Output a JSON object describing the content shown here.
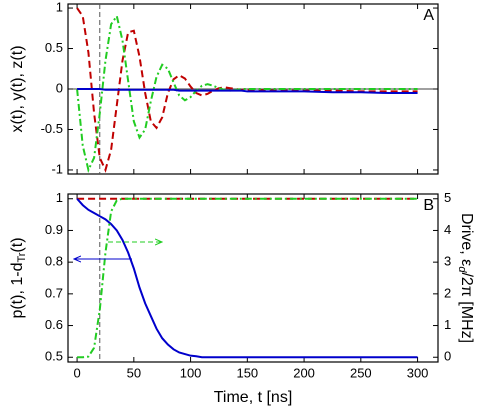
{
  "chart_data": [
    {
      "type": "line",
      "annotation": "A",
      "ylabel": "x(t), y(t), z(t)",
      "x": [
        0,
        5,
        10,
        15,
        20,
        25,
        30,
        35,
        40,
        45,
        50,
        55,
        60,
        65,
        70,
        75,
        80,
        85,
        90,
        95,
        100,
        105,
        110,
        115,
        120,
        125,
        130,
        135,
        140,
        145,
        150,
        175,
        200,
        225,
        250,
        275,
        300
      ],
      "xlim": [
        -8,
        318
      ],
      "xticks": [
        0,
        50,
        100,
        150,
        200,
        250,
        300
      ],
      "ylim": [
        -1.05,
        1.05
      ],
      "yticks": [
        -1,
        -0.5,
        0,
        0.5,
        1
      ],
      "vlines": [
        20
      ],
      "grid": false,
      "series": [
        {
          "color": "#c00000",
          "style": "dashed",
          "values": [
            1,
            0.9,
            0.45,
            -0.3,
            -0.85,
            -1,
            -0.75,
            -0.2,
            0.35,
            0.7,
            0.72,
            0.4,
            -0.05,
            -0.4,
            -0.48,
            -0.35,
            -0.05,
            0.12,
            0.17,
            0.13,
            0.03,
            -0.05,
            -0.08,
            -0.06,
            -0.02,
            0.01,
            0.02,
            0.01,
            0,
            -0.01,
            -0.01,
            -0.02,
            -0.02,
            -0.02,
            -0.03,
            -0.03,
            -0.03
          ]
        },
        {
          "color": "#22cc22",
          "style": "dashdot",
          "values": [
            0,
            -0.7,
            -1,
            -0.85,
            -0.3,
            0.35,
            0.8,
            0.9,
            0.6,
            0.1,
            -0.4,
            -0.6,
            -0.5,
            -0.15,
            0.15,
            0.3,
            0.25,
            0.08,
            -0.08,
            -0.14,
            -0.1,
            -0.02,
            0.04,
            0.06,
            0.04,
            0.01,
            -0.01,
            -0.02,
            -0.01,
            0,
            0,
            0,
            0,
            0,
            0,
            0,
            0
          ]
        },
        {
          "color": "#0000cc",
          "style": "solid",
          "values": [
            0,
            0,
            0,
            0,
            0,
            -0.01,
            -0.01,
            -0.01,
            -0.01,
            -0.01,
            -0.01,
            -0.01,
            -0.01,
            -0.01,
            -0.01,
            -0.01,
            -0.01,
            -0.01,
            -0.02,
            -0.02,
            -0.02,
            -0.02,
            -0.02,
            -0.02,
            -0.02,
            -0.02,
            -0.02,
            -0.02,
            -0.02,
            -0.02,
            -0.03,
            -0.03,
            -0.03,
            -0.04,
            -0.04,
            -0.05,
            -0.05
          ]
        }
      ]
    },
    {
      "type": "line",
      "annotation": "B",
      "xlabel": "Time, t [ns]",
      "ylabel": "p(t), 1-d",
      "ylabel_sub": "Tr",
      "ylabel_end": "(t)",
      "y2label": "Drive, ε",
      "y2label_sub": "d",
      "y2label_end": "/2π [MHz]",
      "x": [
        0,
        5,
        10,
        15,
        20,
        25,
        30,
        35,
        40,
        45,
        50,
        55,
        60,
        65,
        70,
        75,
        80,
        85,
        90,
        95,
        100,
        105,
        110,
        115,
        120,
        125,
        130,
        135,
        140,
        145,
        150,
        175,
        200,
        225,
        250,
        275,
        300
      ],
      "xlim": [
        -8,
        318
      ],
      "xticks": [
        0,
        50,
        100,
        150,
        200,
        250,
        300
      ],
      "ylim": [
        0.485,
        1.015
      ],
      "yticks": [
        0.5,
        0.6,
        0.7,
        0.8,
        0.9,
        1
      ],
      "y2lim": [
        -0.15,
        5.15
      ],
      "y2ticks": [
        0,
        1,
        2,
        3,
        4,
        5
      ],
      "vlines": [
        20
      ],
      "grid": false,
      "series": [
        {
          "color": "#c00000",
          "style": "dashed",
          "values": [
            1,
            1,
            1,
            1,
            1,
            1,
            1,
            1,
            1,
            1,
            1,
            1,
            1,
            1,
            1,
            1,
            1,
            1,
            1,
            1,
            1,
            1,
            1,
            1,
            1,
            1,
            1,
            1,
            1,
            1,
            1,
            1,
            1,
            1,
            1,
            1,
            1
          ]
        },
        {
          "color": "#0000cc",
          "style": "solid",
          "values": [
            1,
            0.98,
            0.965,
            0.955,
            0.945,
            0.935,
            0.92,
            0.9,
            0.87,
            0.83,
            0.78,
            0.72,
            0.67,
            0.63,
            0.59,
            0.56,
            0.54,
            0.525,
            0.515,
            0.51,
            0.505,
            0.503,
            0.5,
            0.5,
            0.5,
            0.5,
            0.5,
            0.5,
            0.5,
            0.5,
            0.5,
            0.5,
            0.5,
            0.5,
            0.5,
            0.5,
            0.5
          ]
        },
        {
          "color": "#22cc22",
          "style": "dashdot",
          "axis": "y2",
          "values": [
            0,
            0,
            0.02,
            0.3,
            1.5,
            3.3,
            4.6,
            4.95,
            5,
            5,
            5,
            5,
            5,
            5,
            5,
            5,
            5,
            5,
            5,
            5,
            5,
            5,
            5,
            5,
            5,
            5,
            5,
            5,
            5,
            5,
            5,
            5,
            5,
            5,
            5,
            5,
            5
          ]
        }
      ]
    }
  ]
}
